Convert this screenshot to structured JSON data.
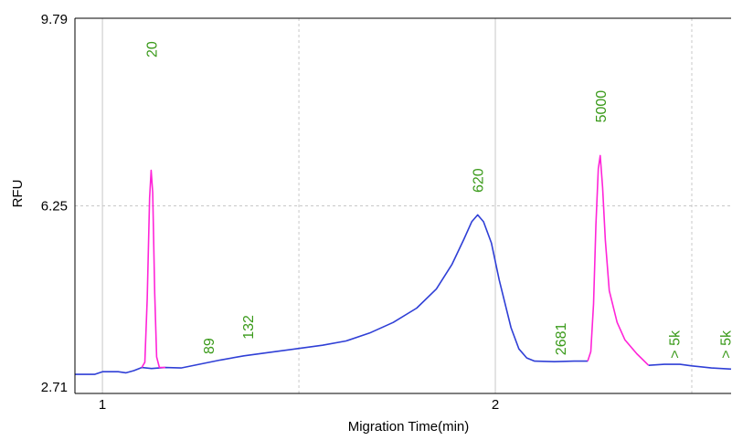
{
  "chart_data": {
    "type": "line",
    "title": "",
    "xlabel": "Migration Time(min)",
    "ylabel": "RFU",
    "xlim": [
      0.93,
      2.6
    ],
    "ylim": [
      2.71,
      9.79
    ],
    "x_ticks": [
      {
        "value": 1,
        "label": "1"
      },
      {
        "value": 2,
        "label": "2"
      }
    ],
    "x_minor_gridlines": [
      1.5,
      2.5
    ],
    "y_ticks": [
      {
        "value": 2.71,
        "label": "2.71"
      },
      {
        "value": 6.25,
        "label": "6.25"
      },
      {
        "value": 9.79,
        "label": "9.79"
      }
    ],
    "grid": true,
    "colors": {
      "trace": "#2f3fd6",
      "marker_peak": "#ff24d8",
      "peak_label": "#3a9a1a",
      "grid": "#c8c8c8",
      "axis": "#000000"
    },
    "series": [
      {
        "points": [
          [
            0.93,
            3.07
          ],
          [
            0.98,
            3.07
          ],
          [
            1.0,
            3.12
          ],
          [
            1.04,
            3.12
          ],
          [
            1.06,
            3.1
          ],
          [
            1.08,
            3.14
          ],
          [
            1.1,
            3.2
          ],
          [
            1.125,
            3.18
          ],
          [
            1.16,
            3.2
          ],
          [
            1.2,
            3.19
          ],
          [
            1.22,
            3.22
          ],
          [
            1.26,
            3.28
          ],
          [
            1.3,
            3.34
          ],
          [
            1.36,
            3.42
          ],
          [
            1.42,
            3.48
          ],
          [
            1.5,
            3.56
          ],
          [
            1.56,
            3.62
          ],
          [
            1.62,
            3.7
          ],
          [
            1.68,
            3.85
          ],
          [
            1.74,
            4.05
          ],
          [
            1.8,
            4.32
          ],
          [
            1.85,
            4.68
          ],
          [
            1.89,
            5.15
          ],
          [
            1.92,
            5.62
          ],
          [
            1.94,
            5.95
          ],
          [
            1.955,
            6.08
          ],
          [
            1.97,
            5.95
          ],
          [
            1.99,
            5.55
          ],
          [
            2.01,
            4.85
          ],
          [
            2.04,
            3.95
          ],
          [
            2.06,
            3.55
          ],
          [
            2.08,
            3.38
          ],
          [
            2.1,
            3.32
          ],
          [
            2.15,
            3.31
          ],
          [
            2.2,
            3.32
          ],
          [
            2.235,
            3.32
          ]
        ]
      },
      {
        "points": [
          [
            2.39,
            3.24
          ],
          [
            2.43,
            3.26
          ],
          [
            2.47,
            3.26
          ],
          [
            2.5,
            3.23
          ],
          [
            2.55,
            3.19
          ],
          [
            2.6,
            3.17
          ]
        ]
      }
    ],
    "marker_peaks": [
      {
        "points": [
          [
            1.1,
            3.2
          ],
          [
            1.108,
            3.3
          ],
          [
            1.114,
            4.5
          ],
          [
            1.12,
            6.4
          ],
          [
            1.124,
            6.92
          ],
          [
            1.128,
            6.5
          ],
          [
            1.133,
            4.6
          ],
          [
            1.138,
            3.4
          ],
          [
            1.145,
            3.2
          ],
          [
            1.16,
            3.2
          ]
        ]
      },
      {
        "points": [
          [
            2.235,
            3.32
          ],
          [
            2.243,
            3.5
          ],
          [
            2.25,
            4.4
          ],
          [
            2.256,
            5.9
          ],
          [
            2.262,
            6.95
          ],
          [
            2.267,
            7.2
          ],
          [
            2.273,
            6.6
          ],
          [
            2.28,
            5.6
          ],
          [
            2.29,
            4.65
          ],
          [
            2.31,
            4.05
          ],
          [
            2.33,
            3.72
          ],
          [
            2.36,
            3.46
          ],
          [
            2.39,
            3.24
          ]
        ]
      }
    ],
    "peak_labels": [
      {
        "label": "20",
        "x": 1.124
      },
      {
        "label": "89",
        "x": 1.27
      },
      {
        "label": "132",
        "x": 1.37
      },
      {
        "label": "620",
        "x": 1.955
      },
      {
        "label": "2681",
        "x": 2.165
      },
      {
        "label": "5000",
        "x": 2.267
      },
      {
        "label": "> 5k",
        "x": 2.455
      },
      {
        "label": "> 5k",
        "x": 2.585
      }
    ]
  }
}
